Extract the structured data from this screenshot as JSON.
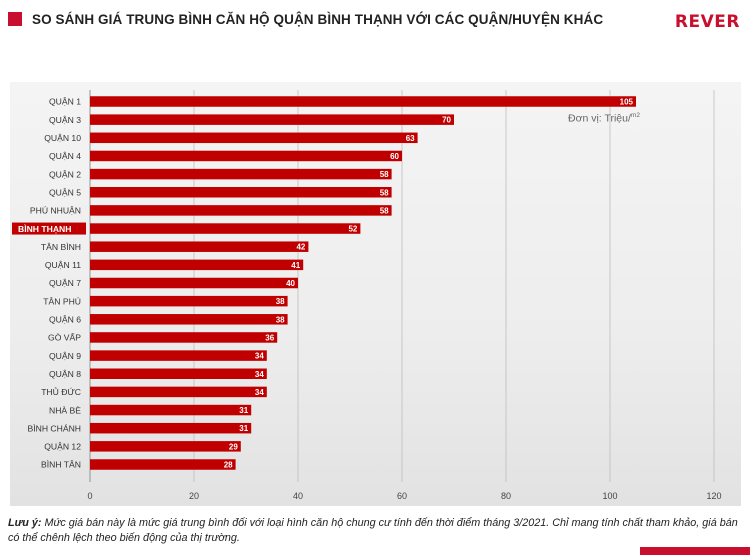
{
  "header": {
    "title": "SO SÁNH GIÁ TRUNG BÌNH CĂN HỘ QUẬN BÌNH THẠNH VỚI CÁC QUẬN/HUYỆN KHÁC",
    "logo": "REVER"
  },
  "colors": {
    "accent": "#c8102e",
    "bar": "#c00000",
    "text": "#222222",
    "grid": "#bdbdbd"
  },
  "chart_data": {
    "type": "bar",
    "orientation": "horizontal",
    "categories": [
      "QUẬN 1",
      "QUẬN 3",
      "QUẬN 10",
      "QUẬN 4",
      "QUẬN 2",
      "QUẬN 5",
      "PHÚ NHUẬN",
      "BÌNH THẠNH",
      "TÂN BÌNH",
      "QUẬN 11",
      "QUẬN 7",
      "TÂN PHÚ",
      "QUẬN 6",
      "GÒ VẤP",
      "QUẬN 9",
      "QUẬN 8",
      "THỦ ĐỨC",
      "NHÀ BÈ",
      "BÌNH CHÁNH",
      "QUẬN 12",
      "BÌNH TÂN"
    ],
    "values": [
      105,
      70,
      63,
      60,
      58,
      58,
      58,
      52,
      42,
      41,
      40,
      38,
      38,
      36,
      34,
      34,
      34,
      31,
      31,
      29,
      28
    ],
    "highlight": "BÌNH THẠNH",
    "xlim": [
      0,
      120
    ],
    "xticks": [
      0,
      20,
      40,
      60,
      80,
      100,
      120
    ],
    "unit_label": "Đơn vị: Triệu/",
    "unit_sup": "m2",
    "grid": true,
    "data_labels": true
  },
  "note": {
    "label": "Lưu ý:",
    "text": " Mức giá bán này là mức giá trung bình đối với loại hình căn hộ chung cư tính đến thời điểm tháng 3/2021. Chỉ mang tính chất tham khảo, giá bán có thể chênh lệch theo biến động của thị trường."
  }
}
